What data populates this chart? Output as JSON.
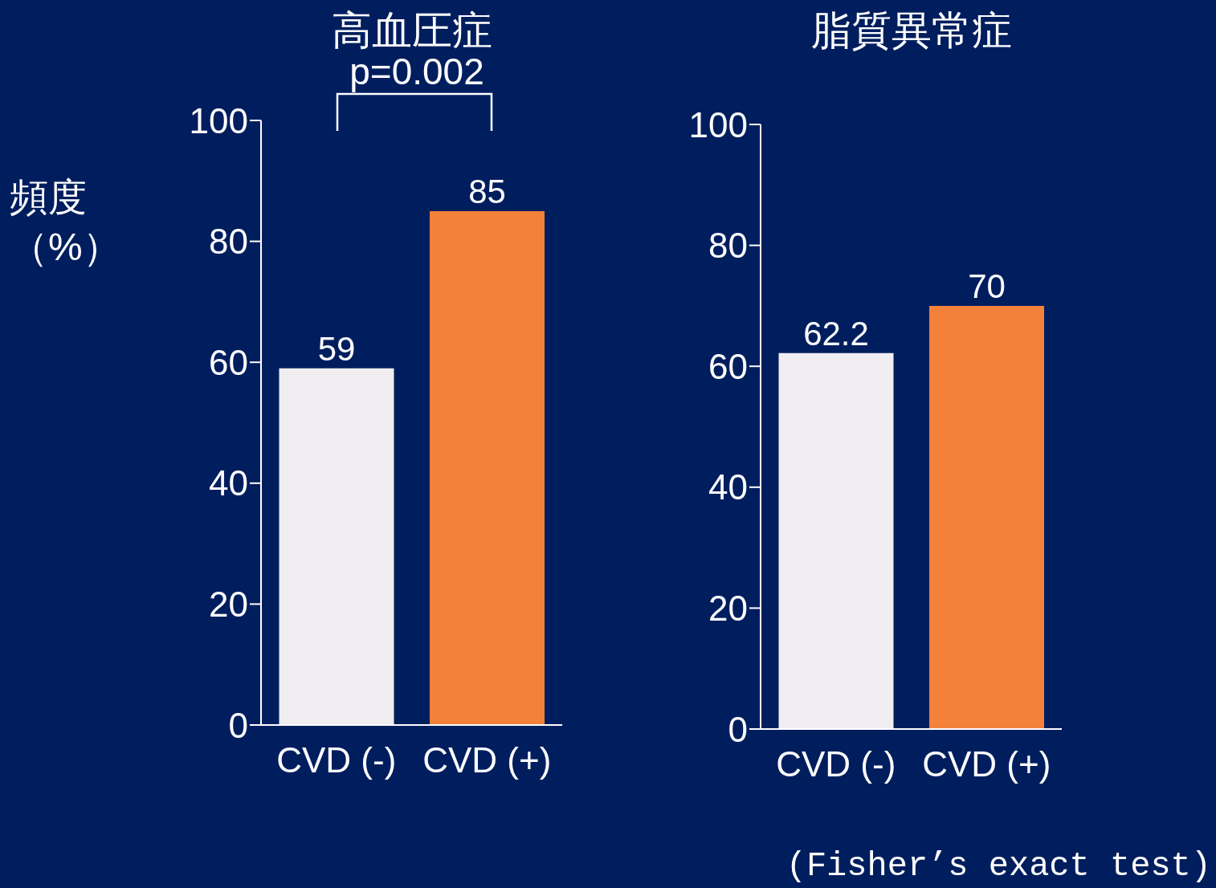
{
  "chart_data": [
    {
      "type": "bar",
      "title": "高血圧症",
      "ylabel": "頻度（%）",
      "categories": [
        "CVD (-)",
        "CVD (+)"
      ],
      "values": [
        59,
        85
      ],
      "colors": [
        "#f0eef0",
        "#f4813a"
      ],
      "ylim": [
        0,
        100
      ],
      "yticks": [
        0,
        20,
        40,
        60,
        80,
        100
      ],
      "data_labels": true,
      "grid": false,
      "legend": false,
      "annotations": [
        "p=0.002"
      ]
    },
    {
      "type": "bar",
      "title": "脂質異常症",
      "categories": [
        "CVD (-)",
        "CVD (+)"
      ],
      "values": [
        62.2,
        70
      ],
      "colors": [
        "#f0eef0",
        "#f4813a"
      ],
      "ylim": [
        0,
        100
      ],
      "yticks": [
        0,
        20,
        40,
        60,
        80,
        100
      ],
      "data_labels": true,
      "grid": false,
      "legend": false,
      "annotations": [
        "(Fisher’s exact test)"
      ]
    }
  ]
}
